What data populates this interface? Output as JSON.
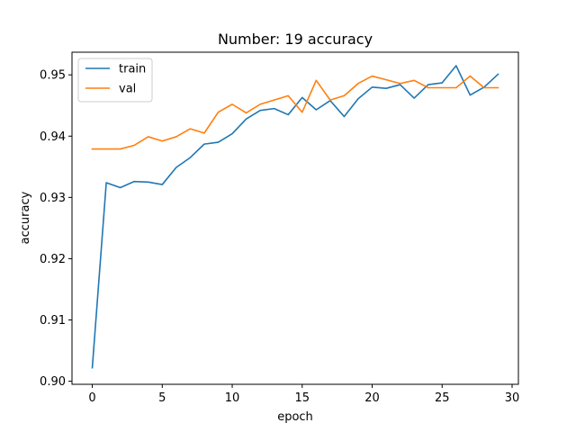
{
  "chart_data": {
    "type": "line",
    "title": "Number: 19 accuracy",
    "xlabel": "epoch",
    "ylabel": "accuracy",
    "xlim": [
      -1.45,
      30.45
    ],
    "ylim": [
      0.8995,
      0.9537
    ],
    "xticks": [
      0,
      5,
      10,
      15,
      20,
      25,
      30
    ],
    "yticks": [
      0.9,
      0.91,
      0.92,
      0.93,
      0.94,
      0.95
    ],
    "xtick_labels": [
      "0",
      "5",
      "10",
      "15",
      "20",
      "25",
      "30"
    ],
    "ytick_labels": [
      "0.90",
      "0.91",
      "0.92",
      "0.93",
      "0.94",
      "0.95"
    ],
    "grid": false,
    "legend": "top-left",
    "x": [
      0,
      1,
      2,
      3,
      4,
      5,
      6,
      7,
      8,
      9,
      10,
      11,
      12,
      13,
      14,
      15,
      16,
      17,
      18,
      19,
      20,
      21,
      22,
      23,
      24,
      25,
      26,
      27,
      28,
      29
    ],
    "series": [
      {
        "name": "train",
        "color": "#1f77b4",
        "values": [
          0.9022,
          0.9324,
          0.9316,
          0.9326,
          0.9325,
          0.9321,
          0.9349,
          0.9365,
          0.9387,
          0.939,
          0.9404,
          0.9428,
          0.9442,
          0.9445,
          0.9435,
          0.9463,
          0.9443,
          0.9458,
          0.9432,
          0.9461,
          0.948,
          0.9478,
          0.9484,
          0.9462,
          0.9484,
          0.9487,
          0.9515,
          0.9467,
          0.948,
          0.9501
        ]
      },
      {
        "name": "val",
        "color": "#ff7f0e",
        "values": [
          0.9379,
          0.9379,
          0.9379,
          0.9385,
          0.9399,
          0.9392,
          0.9399,
          0.9412,
          0.9405,
          0.9439,
          0.9452,
          0.9438,
          0.9452,
          0.9459,
          0.9466,
          0.9439,
          0.9491,
          0.9459,
          0.9466,
          0.9486,
          0.9498,
          0.9492,
          0.9486,
          0.9491,
          0.9479,
          0.9479,
          0.9479,
          0.9498,
          0.9479,
          0.9479
        ]
      }
    ]
  }
}
